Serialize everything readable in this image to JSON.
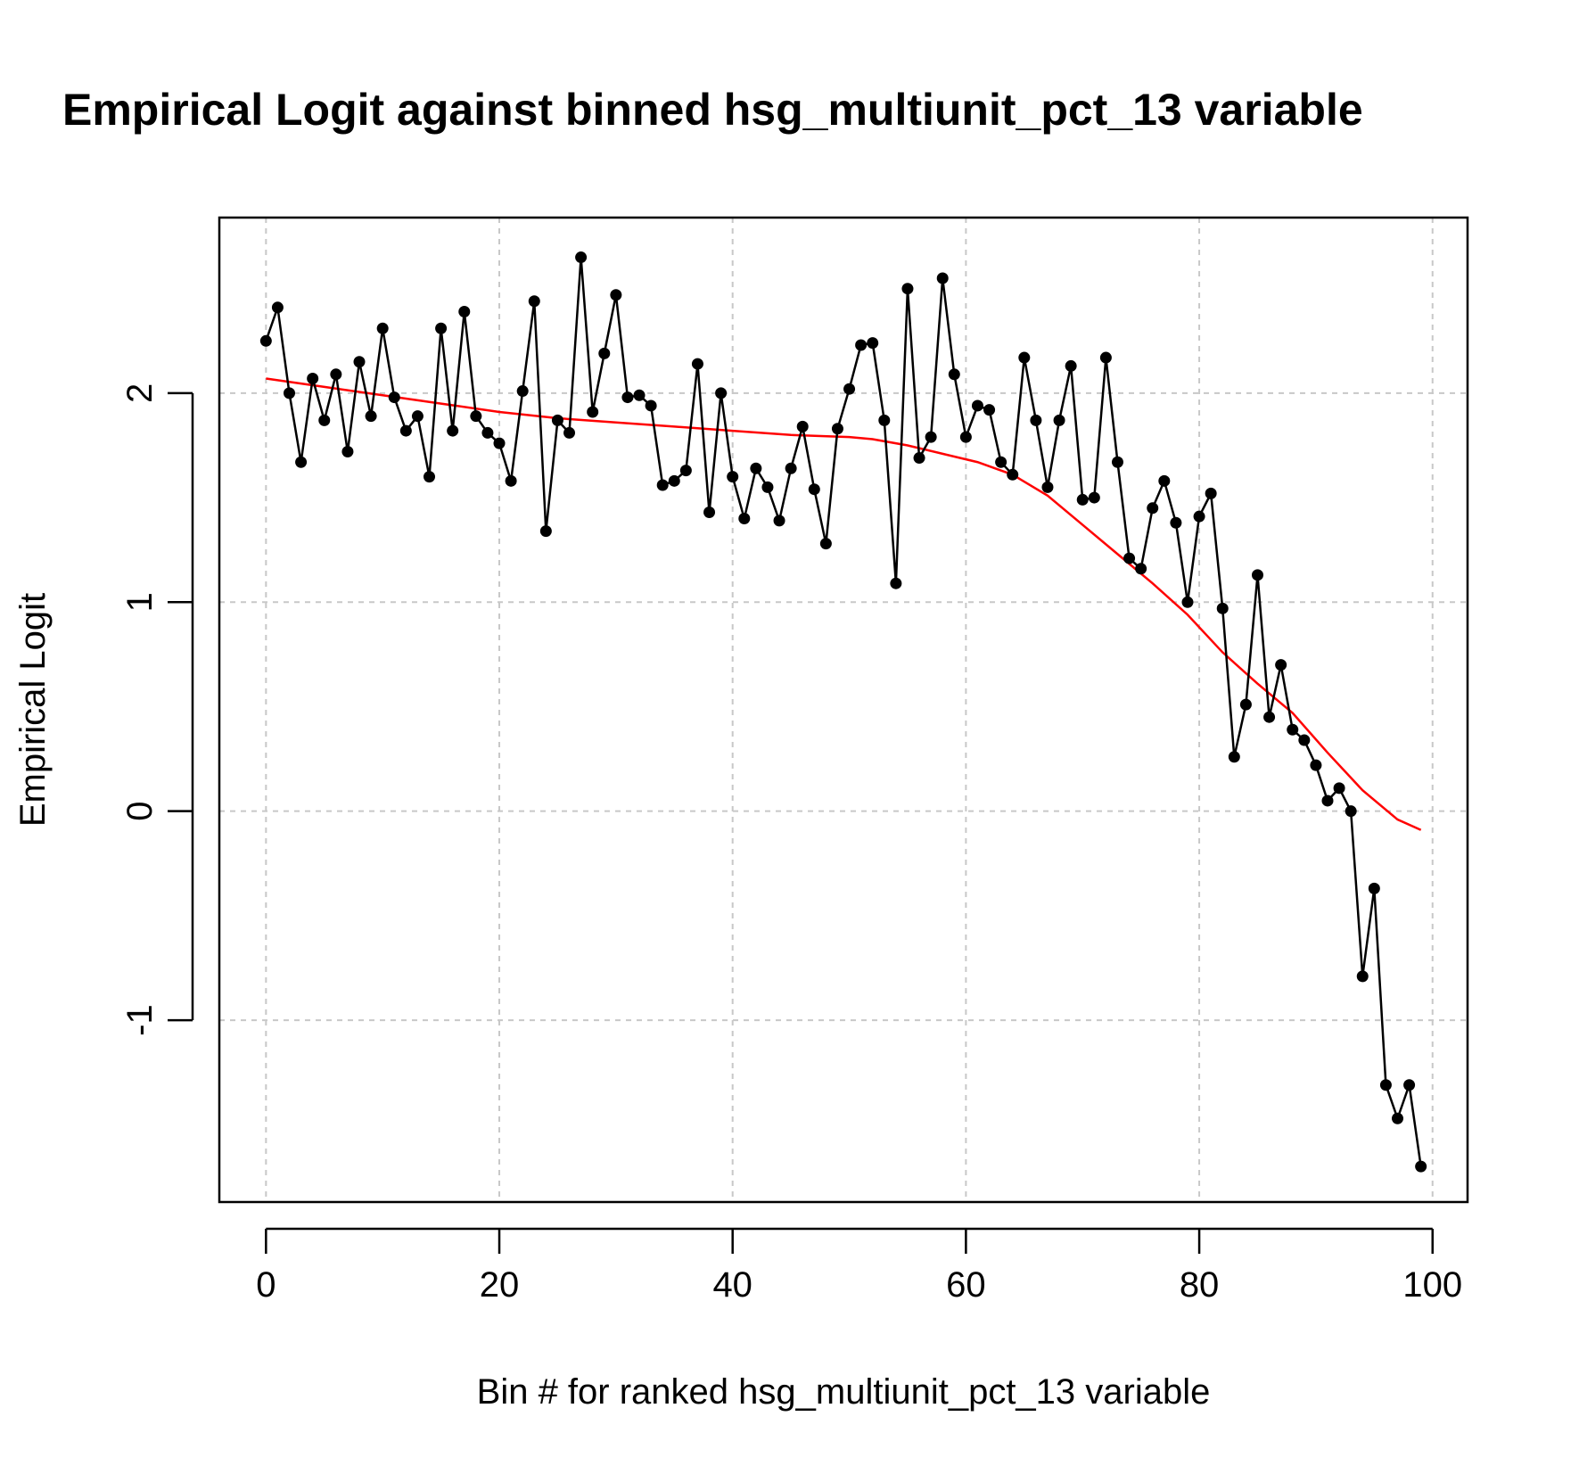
{
  "chart_data": {
    "type": "line",
    "title": "Empirical Logit against binned hsg_multiunit_pct_13 variable",
    "xlabel": "Bin # for ranked hsg_multiunit_pct_13 variable",
    "ylabel": "Empirical Logit",
    "xlim": [
      -4,
      103
    ],
    "ylim": [
      -1.87,
      2.84
    ],
    "x_ticks": [
      0,
      20,
      40,
      60,
      80,
      100
    ],
    "y_ticks": [
      -1,
      0,
      1,
      2
    ],
    "x_tick_labels": [
      "0",
      "20",
      "40",
      "60",
      "80",
      "100"
    ],
    "y_tick_labels": [
      "-1",
      "0",
      "1",
      "2"
    ],
    "grid": true,
    "legend": "none",
    "colors": {
      "points": "#000000",
      "smooth": "#ff0000",
      "grid": "#c8c8c8"
    },
    "series": [
      {
        "style": "points-and-line",
        "color": "#000000",
        "x": [
          0,
          1,
          2,
          3,
          4,
          5,
          6,
          7,
          8,
          9,
          10,
          11,
          12,
          13,
          14,
          15,
          16,
          17,
          18,
          19,
          20,
          21,
          22,
          23,
          24,
          25,
          26,
          27,
          28,
          29,
          30,
          31,
          32,
          33,
          34,
          35,
          36,
          37,
          38,
          39,
          40,
          41,
          42,
          43,
          44,
          45,
          46,
          47,
          48,
          49,
          50,
          51,
          52,
          53,
          54,
          55,
          56,
          57,
          58,
          59,
          60,
          61,
          62,
          63,
          64,
          65,
          66,
          67,
          68,
          69,
          70,
          71,
          72,
          73,
          74,
          75,
          76,
          77,
          78,
          79,
          80,
          81,
          82,
          83,
          84,
          85,
          86,
          87,
          88,
          89,
          90,
          91,
          92,
          93,
          94,
          95,
          96,
          97,
          98,
          99
        ],
        "values": [
          2.25,
          2.41,
          2.0,
          1.67,
          2.07,
          1.87,
          2.09,
          1.72,
          2.15,
          1.89,
          2.31,
          1.98,
          1.82,
          1.89,
          1.6,
          2.31,
          1.82,
          2.39,
          1.89,
          1.81,
          1.76,
          1.58,
          2.01,
          2.44,
          1.34,
          1.87,
          1.81,
          2.65,
          1.91,
          2.19,
          2.47,
          1.98,
          1.99,
          1.94,
          1.56,
          1.58,
          1.63,
          2.14,
          1.43,
          2.0,
          1.6,
          1.4,
          1.64,
          1.55,
          1.39,
          1.64,
          1.84,
          1.54,
          1.28,
          1.83,
          2.02,
          2.23,
          2.24,
          1.87,
          1.09,
          2.5,
          1.69,
          1.79,
          2.55,
          2.09,
          1.79,
          1.94,
          1.92,
          1.67,
          1.61,
          2.17,
          1.87,
          1.55,
          1.87,
          2.13,
          1.49,
          1.5,
          2.17,
          1.67,
          1.21,
          1.16,
          1.45,
          1.58,
          1.38,
          1.0,
          1.41,
          1.52,
          0.97,
          0.26,
          0.51,
          1.13,
          0.45,
          0.7,
          0.39,
          0.34,
          0.22,
          0.05,
          0.11,
          0.0,
          -0.79,
          -0.37,
          -1.31,
          -1.47,
          -1.31,
          -1.7
        ]
      },
      {
        "style": "line",
        "color": "#ff0000",
        "x": [
          0,
          5,
          10,
          15,
          20,
          25,
          30,
          35,
          40,
          45,
          50,
          52,
          55,
          58,
          61,
          64,
          67,
          70,
          73,
          76,
          79,
          82,
          85,
          88,
          91,
          94,
          97,
          99
        ],
        "values": [
          2.07,
          2.03,
          1.99,
          1.95,
          1.91,
          1.88,
          1.86,
          1.84,
          1.82,
          1.8,
          1.79,
          1.78,
          1.75,
          1.71,
          1.67,
          1.61,
          1.51,
          1.37,
          1.23,
          1.09,
          0.94,
          0.76,
          0.61,
          0.47,
          0.28,
          0.1,
          -0.04,
          -0.09
        ]
      }
    ]
  }
}
